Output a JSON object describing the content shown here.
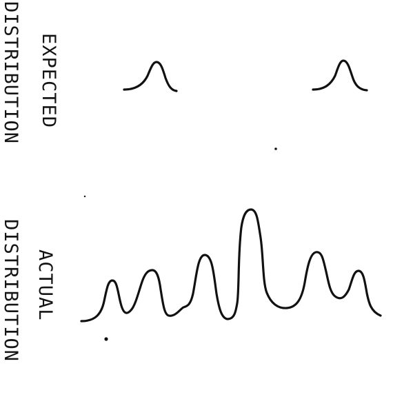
{
  "labels": {
    "expected": {
      "line1": "EXPECTED",
      "line2": "DISTRIBUTION"
    },
    "actual": {
      "line1": "ACTUAL",
      "line2": "DISTRIBUTION"
    }
  },
  "colors": {
    "ink": "#111111",
    "background": "#ffffff"
  }
}
